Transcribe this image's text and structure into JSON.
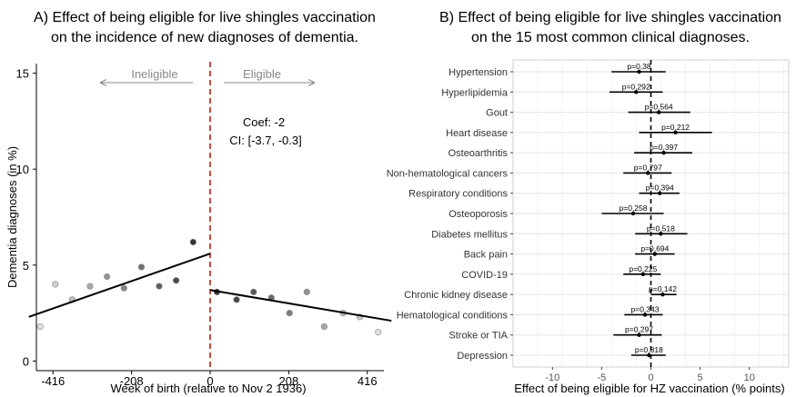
{
  "chart_data": [
    {
      "type": "scatter",
      "title_line1": "A) Effect of being eligible for live shingles vaccination",
      "title_line2": "on the incidence of new diagnoses of dementia.",
      "xlabel": "Week of birth (relative to Nov 2 1936)",
      "ylabel": "Dementia diagnoses (in %)",
      "xlim": [
        -460,
        460
      ],
      "ylim": [
        -0.5,
        15.5
      ],
      "x_ticks": [
        -416,
        -208,
        0,
        208,
        416
      ],
      "y_ticks": [
        0,
        5,
        10,
        15
      ],
      "grid": false,
      "cutoff_x": 0,
      "annotations": {
        "ineligible": "Ineligible",
        "eligible": "Eligible",
        "coef": "Coef: -2",
        "ci": "CI: [-3.7, -0.3]"
      },
      "points": [
        {
          "x": -450,
          "y": 1.8,
          "shade": 0.95
        },
        {
          "x": -410,
          "y": 4.0,
          "shade": 0.88
        },
        {
          "x": -365,
          "y": 3.2,
          "shade": 0.8
        },
        {
          "x": -318,
          "y": 3.9,
          "shade": 0.72
        },
        {
          "x": -273,
          "y": 4.4,
          "shade": 0.64
        },
        {
          "x": -228,
          "y": 3.8,
          "shade": 0.56
        },
        {
          "x": -182,
          "y": 4.9,
          "shade": 0.48
        },
        {
          "x": -135,
          "y": 3.9,
          "shade": 0.4
        },
        {
          "x": -90,
          "y": 4.2,
          "shade": 0.32
        },
        {
          "x": -45,
          "y": 6.2,
          "shade": 0.22
        },
        {
          "x": 18,
          "y": 3.6,
          "shade": 0.22
        },
        {
          "x": 70,
          "y": 3.2,
          "shade": 0.3
        },
        {
          "x": 115,
          "y": 3.6,
          "shade": 0.38
        },
        {
          "x": 162,
          "y": 3.3,
          "shade": 0.46
        },
        {
          "x": 210,
          "y": 2.5,
          "shade": 0.54
        },
        {
          "x": 256,
          "y": 3.6,
          "shade": 0.62
        },
        {
          "x": 302,
          "y": 1.8,
          "shade": 0.7
        },
        {
          "x": 352,
          "y": 2.5,
          "shade": 0.78
        },
        {
          "x": 396,
          "y": 2.3,
          "shade": 0.86
        },
        {
          "x": 445,
          "y": 1.5,
          "shade": 0.95
        }
      ],
      "fit_left": {
        "x": [
          -480,
          0
        ],
        "y": [
          2.3,
          5.6
        ]
      },
      "fit_right": {
        "x": [
          0,
          480
        ],
        "y": [
          3.7,
          2.1
        ]
      }
    },
    {
      "type": "forest",
      "title_line1": "B) Effect of being eligible for live shingles vaccination",
      "title_line2": "on the 15 most common clinical diagnoses.",
      "xlabel": "Effect of being eligible for HZ vaccination (% points)",
      "xlim": [
        -14,
        14
      ],
      "x_ticks": [
        -10,
        -5,
        0,
        5,
        10
      ],
      "grid": true,
      "rows": [
        {
          "label": "Hypertension",
          "est": -1.2,
          "lo": -4.0,
          "hi": 1.5,
          "p": "p=0,38"
        },
        {
          "label": "Hyperlipidemia",
          "est": -1.5,
          "lo": -4.2,
          "hi": 1.2,
          "p": "p=0,292"
        },
        {
          "label": "Gout",
          "est": 0.8,
          "lo": -2.3,
          "hi": 4.0,
          "p": "p=0,564"
        },
        {
          "label": "Heart disease",
          "est": 2.5,
          "lo": -1.2,
          "hi": 6.2,
          "p": "p=0,212"
        },
        {
          "label": "Osteoarthritis",
          "est": 1.3,
          "lo": -1.7,
          "hi": 4.2,
          "p": "p=0,397"
        },
        {
          "label": "Non-hematological cancers",
          "est": -0.3,
          "lo": -2.8,
          "hi": 2.1,
          "p": "p=0,797"
        },
        {
          "label": "Respiratory conditions",
          "est": 0.9,
          "lo": -1.2,
          "hi": 2.9,
          "p": "p=0,394"
        },
        {
          "label": "Osteoporosis",
          "est": -1.8,
          "lo": -5.0,
          "hi": 1.3,
          "p": "p=0,258"
        },
        {
          "label": "Diabetes mellitus",
          "est": 1.0,
          "lo": -1.6,
          "hi": 3.7,
          "p": "p=0,518"
        },
        {
          "label": "Back pain",
          "est": 0.4,
          "lo": -1.6,
          "hi": 2.4,
          "p": "p=0,694"
        },
        {
          "label": "COVID-19",
          "est": -0.8,
          "lo": -2.8,
          "hi": 1.0,
          "p": "p=0,225"
        },
        {
          "label": "Chronic kidney disease",
          "est": 1.2,
          "lo": 0.0,
          "hi": 2.6,
          "p": "p=0,142"
        },
        {
          "label": "Hematological conditions",
          "est": -0.6,
          "lo": -2.7,
          "hi": 1.2,
          "p": "p=0,343"
        },
        {
          "label": "Stroke or TIA",
          "est": -1.2,
          "lo": -3.8,
          "hi": 1.1,
          "p": "p=0,297"
        },
        {
          "label": "Depression",
          "est": -0.2,
          "lo": -2.0,
          "hi": 1.5,
          "p": "p=0,818"
        }
      ]
    }
  ]
}
